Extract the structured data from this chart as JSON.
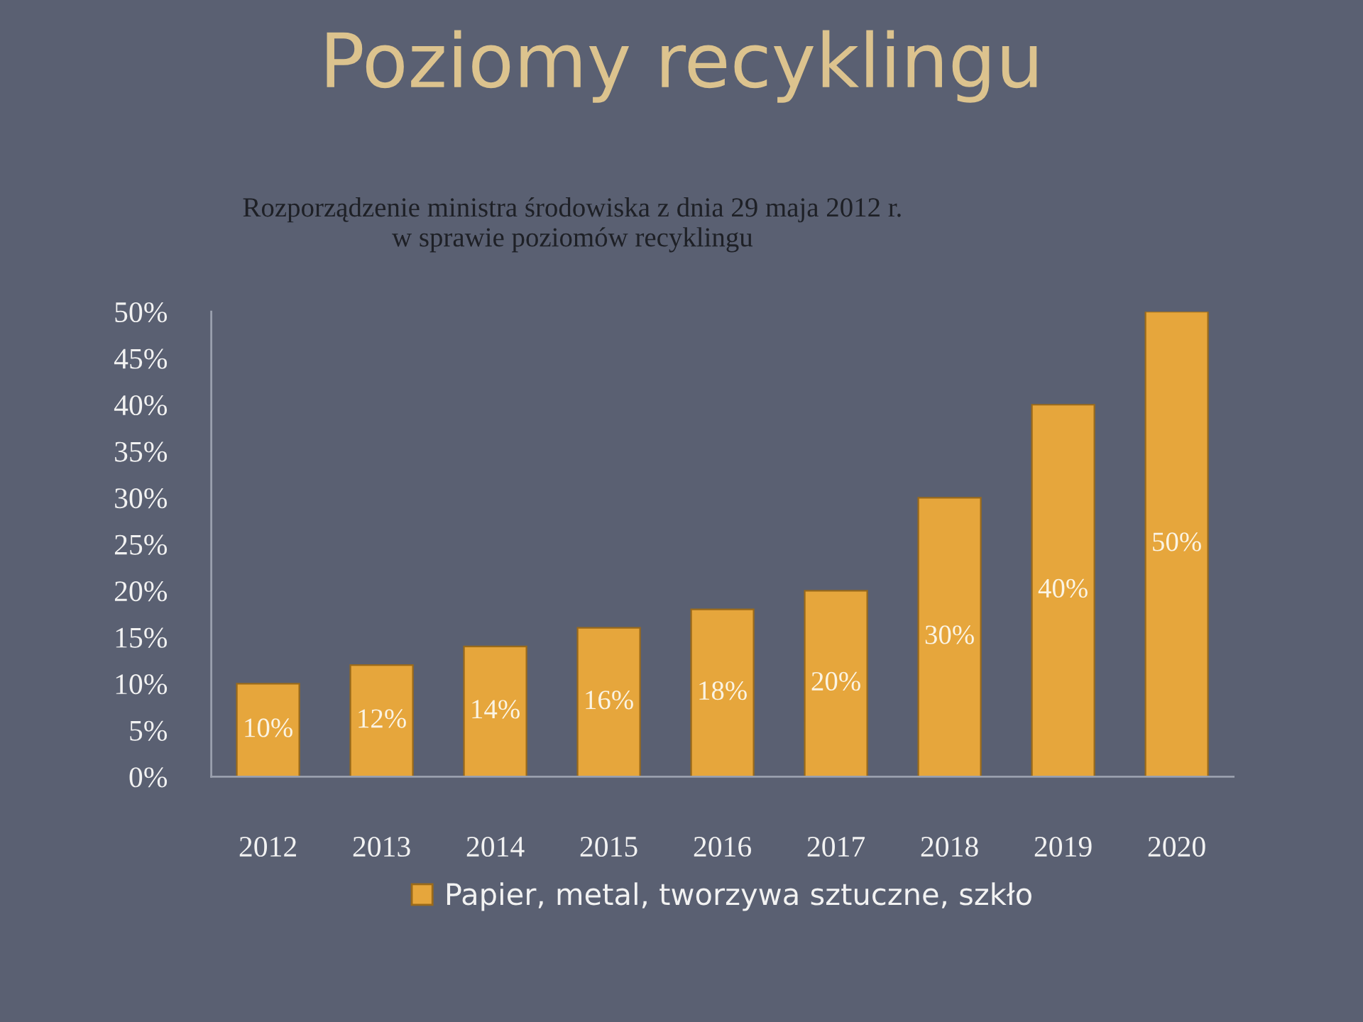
{
  "chart_data": {
    "type": "bar",
    "title": "Poziomy recyklingu",
    "subtitle": "Rozporządzenie ministra środowiska z dnia 29 maja 2012 r.\nw sprawie poziomów recyklingu",
    "categories": [
      "2012",
      "2013",
      "2014",
      "2015",
      "2016",
      "2017",
      "2018",
      "2019",
      "2020"
    ],
    "series": [
      {
        "name": "Papier, metal, tworzywa sztuczne, szkło",
        "color": "#e6a63c",
        "values": [
          10,
          12,
          14,
          16,
          18,
          20,
          30,
          40,
          50
        ],
        "value_labels": [
          "10%",
          "12%",
          "14%",
          "16%",
          "18%",
          "20%",
          "30%",
          "40%",
          "50%"
        ]
      }
    ],
    "ylim": [
      0,
      50
    ],
    "yticks": [
      {
        "value": 0,
        "label": "0%"
      },
      {
        "value": 5,
        "label": "5%"
      },
      {
        "value": 10,
        "label": "10%"
      },
      {
        "value": 15,
        "label": "15%"
      },
      {
        "value": 20,
        "label": "20%"
      },
      {
        "value": 25,
        "label": "25%"
      },
      {
        "value": 30,
        "label": "30%"
      },
      {
        "value": 35,
        "label": "35%"
      },
      {
        "value": 40,
        "label": "40%"
      },
      {
        "value": 45,
        "label": "45%"
      },
      {
        "value": 50,
        "label": "50%"
      }
    ],
    "grid": false,
    "legend": "bottom"
  }
}
